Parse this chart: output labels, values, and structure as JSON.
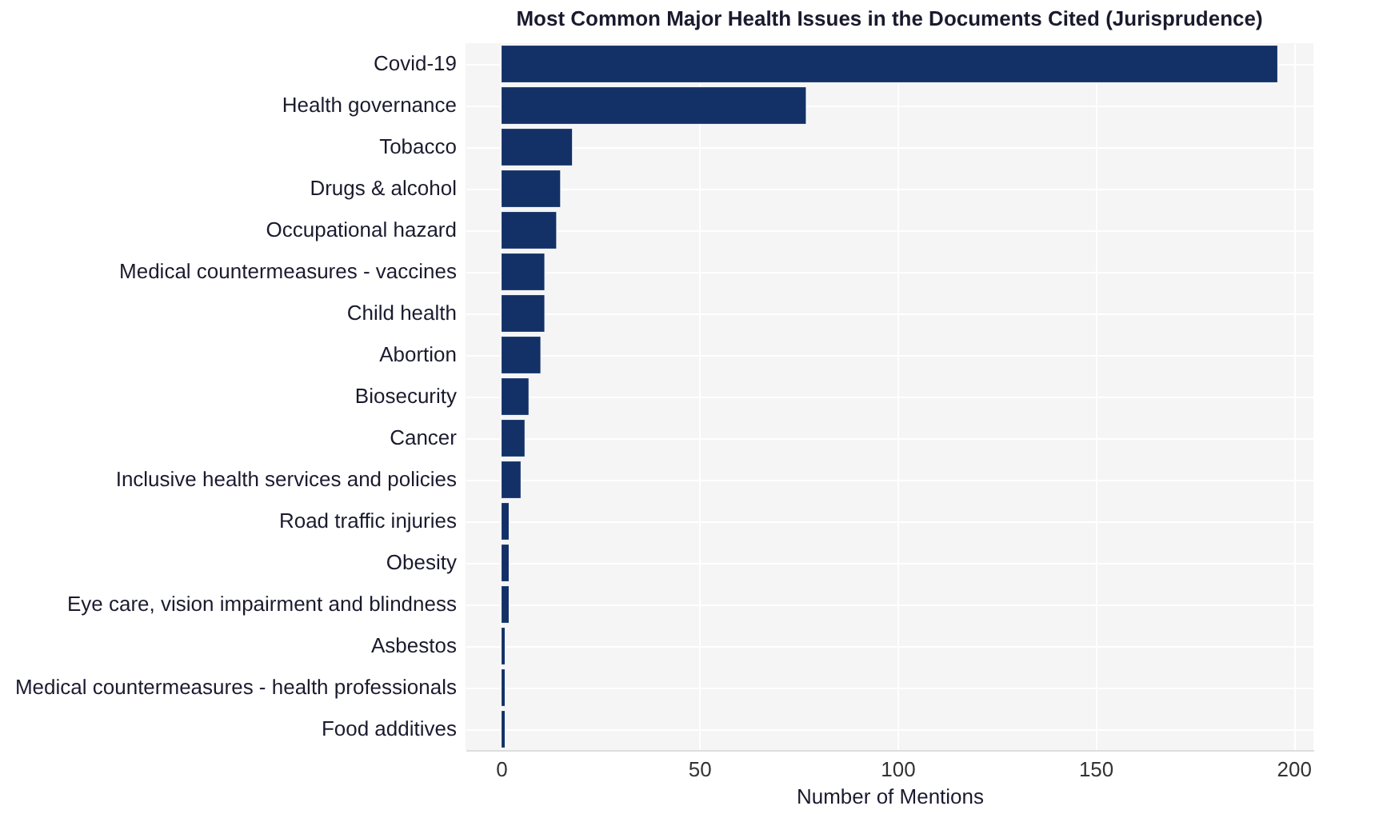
{
  "chart_data": {
    "type": "bar",
    "orientation": "horizontal",
    "title": "Most Common Major Health Issues in the Documents Cited (Jurisprudence)",
    "xlabel": "Number of Mentions",
    "categories": [
      "Covid-19",
      "Health governance",
      "Tobacco",
      "Drugs & alcohol",
      "Occupational hazard",
      "Medical countermeasures - vaccines",
      "Child health",
      "Abortion",
      "Biosecurity",
      "Cancer",
      "Inclusive health services and policies",
      "Road traffic injuries",
      "Obesity",
      "Eye care, vision impairment and blindness",
      "Asbestos",
      "Medical countermeasures - health professionals",
      "Food additives"
    ],
    "values": [
      196,
      77,
      18,
      15,
      14,
      11,
      11,
      10,
      7,
      6,
      5,
      2,
      2,
      2,
      1,
      1,
      1
    ],
    "color": "#133166",
    "xlim": [
      -9,
      205
    ],
    "xticks": [
      0,
      50,
      100,
      150,
      200
    ],
    "grid": true
  }
}
